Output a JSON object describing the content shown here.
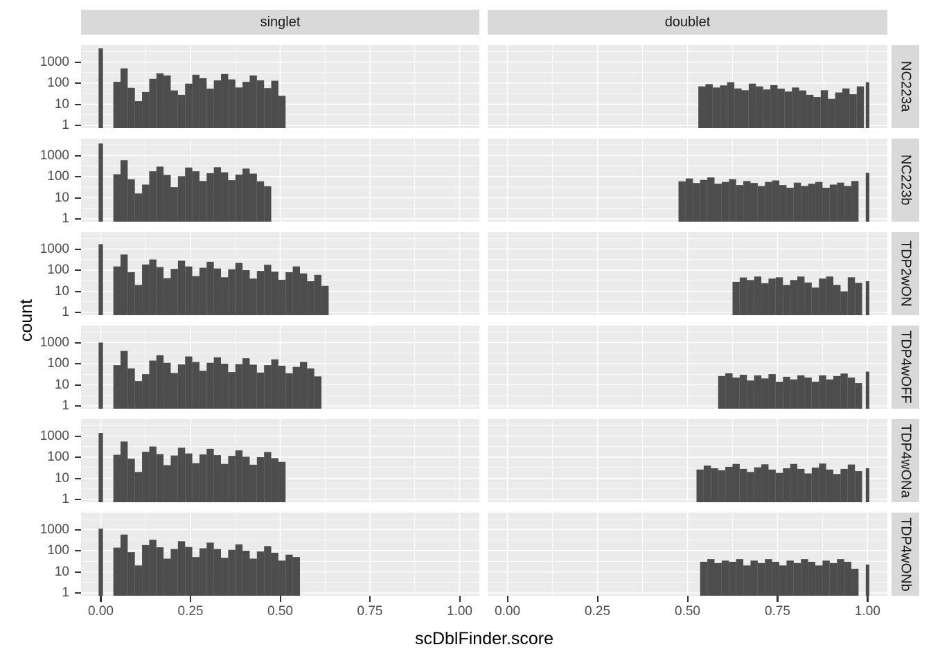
{
  "chart_data": {
    "type": "bar",
    "subtype": "faceted-histogram",
    "title": "",
    "xlabel": "scDblFinder.score",
    "ylabel": "count",
    "x_ticks": [
      "0.00",
      "0.25",
      "0.50",
      "0.75",
      "1.00"
    ],
    "x_tick_values": [
      0,
      0.25,
      0.5,
      0.75,
      1.0
    ],
    "y_ticks": [
      "1000",
      "100",
      "10",
      "1"
    ],
    "y_tick_values": [
      1000,
      100,
      10,
      1
    ],
    "y_scale": "log10",
    "ylim": [
      1,
      5000
    ],
    "xlim": [
      -0.055,
      1.055
    ],
    "grid": "major+minor, white on grey panel",
    "legend": "none",
    "bin_width": 0.02,
    "col_facets": [
      "singlet",
      "doublet"
    ],
    "row_facets": [
      "NC223a",
      "NC223b",
      "TDP2wON",
      "TDP4wOFF",
      "TDP4wONa",
      "TDP4wONb"
    ],
    "colors": {
      "bar": "#4d4d4d",
      "panel_bg": "#ebebeb",
      "strip_bg": "#d9d9d9",
      "gridline": "#ffffff",
      "tick_text": "#4d4d4d",
      "axis_title": "#000000"
    },
    "panels": [
      {
        "row": "NC223a",
        "col": "singlet",
        "spike_at_0": 4500,
        "bins_start": 0.035,
        "values": [
          115,
          500,
          60,
          14,
          38,
          160,
          290,
          230,
          45,
          28,
          95,
          250,
          170,
          55,
          135,
          270,
          150,
          62,
          115,
          230,
          135,
          58,
          130,
          25
        ]
      },
      {
        "row": "NC223a",
        "col": "doublet",
        "spike_at_1": 110,
        "bins_start": 0.53,
        "values": [
          70,
          90,
          62,
          78,
          110,
          56,
          46,
          95,
          70,
          50,
          80,
          55,
          40,
          62,
          45,
          28,
          22,
          46,
          18,
          36,
          56,
          30,
          70
        ]
      },
      {
        "row": "NC223b",
        "col": "singlet",
        "spike_at_0": 3700,
        "bins_start": 0.035,
        "values": [
          130,
          600,
          75,
          16,
          42,
          180,
          300,
          120,
          32,
          105,
          270,
          180,
          62,
          145,
          280,
          160,
          68,
          125,
          240,
          140,
          60,
          35
        ]
      },
      {
        "row": "NC223b",
        "col": "doublet",
        "spike_at_1": 150,
        "bins_start": 0.475,
        "values": [
          60,
          82,
          50,
          70,
          92,
          46,
          56,
          76,
          40,
          62,
          50,
          36,
          56,
          66,
          40,
          30,
          52,
          36,
          46,
          56,
          30,
          42,
          52,
          36,
          62
        ]
      },
      {
        "row": "TDP2wON",
        "col": "singlet",
        "spike_at_0": 1700,
        "bins_start": 0.035,
        "values": [
          150,
          550,
          80,
          20,
          185,
          320,
          140,
          42,
          115,
          280,
          150,
          52,
          130,
          250,
          120,
          46,
          110,
          220,
          100,
          40,
          92,
          180,
          85,
          35,
          80,
          150,
          70,
          30,
          60,
          18
        ]
      },
      {
        "row": "TDP2wON",
        "col": "doublet",
        "spike_at_1": 30,
        "bins_start": 0.625,
        "values": [
          28,
          45,
          34,
          50,
          24,
          40,
          46,
          20,
          34,
          50,
          26,
          15,
          40,
          50,
          20,
          10,
          46,
          25
        ]
      },
      {
        "row": "TDP4wOFF",
        "col": "singlet",
        "spike_at_0": 1000,
        "bins_start": 0.035,
        "values": [
          85,
          400,
          60,
          15,
          32,
          140,
          250,
          110,
          36,
          92,
          220,
          120,
          46,
          110,
          200,
          100,
          40,
          95,
          180,
          90,
          38,
          85,
          160,
          80,
          35,
          70,
          120,
          60,
          25
        ]
      },
      {
        "row": "TDP4wOFF",
        "col": "doublet",
        "spike_at_1": 42,
        "bins_start": 0.585,
        "values": [
          26,
          35,
          22,
          30,
          16,
          28,
          20,
          32,
          14,
          24,
          18,
          28,
          22,
          14,
          28,
          18,
          26,
          34,
          22,
          12
        ]
      },
      {
        "row": "TDP4wONa",
        "col": "singlet",
        "spike_at_0": 1400,
        "bins_start": 0.035,
        "values": [
          130,
          550,
          85,
          20,
          180,
          320,
          140,
          42,
          120,
          280,
          150,
          52,
          135,
          250,
          125,
          48,
          115,
          210,
          105,
          44,
          100,
          175,
          90,
          60
        ]
      },
      {
        "row": "TDP4wONa",
        "col": "doublet",
        "spike_at_1": 30,
        "bins_start": 0.525,
        "values": [
          26,
          40,
          30,
          24,
          35,
          48,
          28,
          20,
          33,
          46,
          26,
          18,
          30,
          48,
          28,
          17,
          32,
          50,
          26,
          16,
          28,
          45,
          22
        ]
      },
      {
        "row": "TDP4wONb",
        "col": "singlet",
        "spike_at_0": 1100,
        "bins_start": 0.035,
        "values": [
          140,
          580,
          85,
          20,
          185,
          330,
          145,
          42,
          120,
          280,
          150,
          50,
          130,
          240,
          120,
          46,
          110,
          200,
          100,
          42,
          92,
          165,
          80,
          34,
          65,
          50
        ]
      },
      {
        "row": "TDP4wONb",
        "col": "doublet",
        "spike_at_1": 22,
        "bins_start": 0.535,
        "values": [
          30,
          40,
          26,
          34,
          30,
          40,
          20,
          34,
          26,
          40,
          30,
          20,
          34,
          26,
          40,
          30,
          20,
          34,
          26,
          40,
          30,
          14
        ]
      }
    ]
  }
}
